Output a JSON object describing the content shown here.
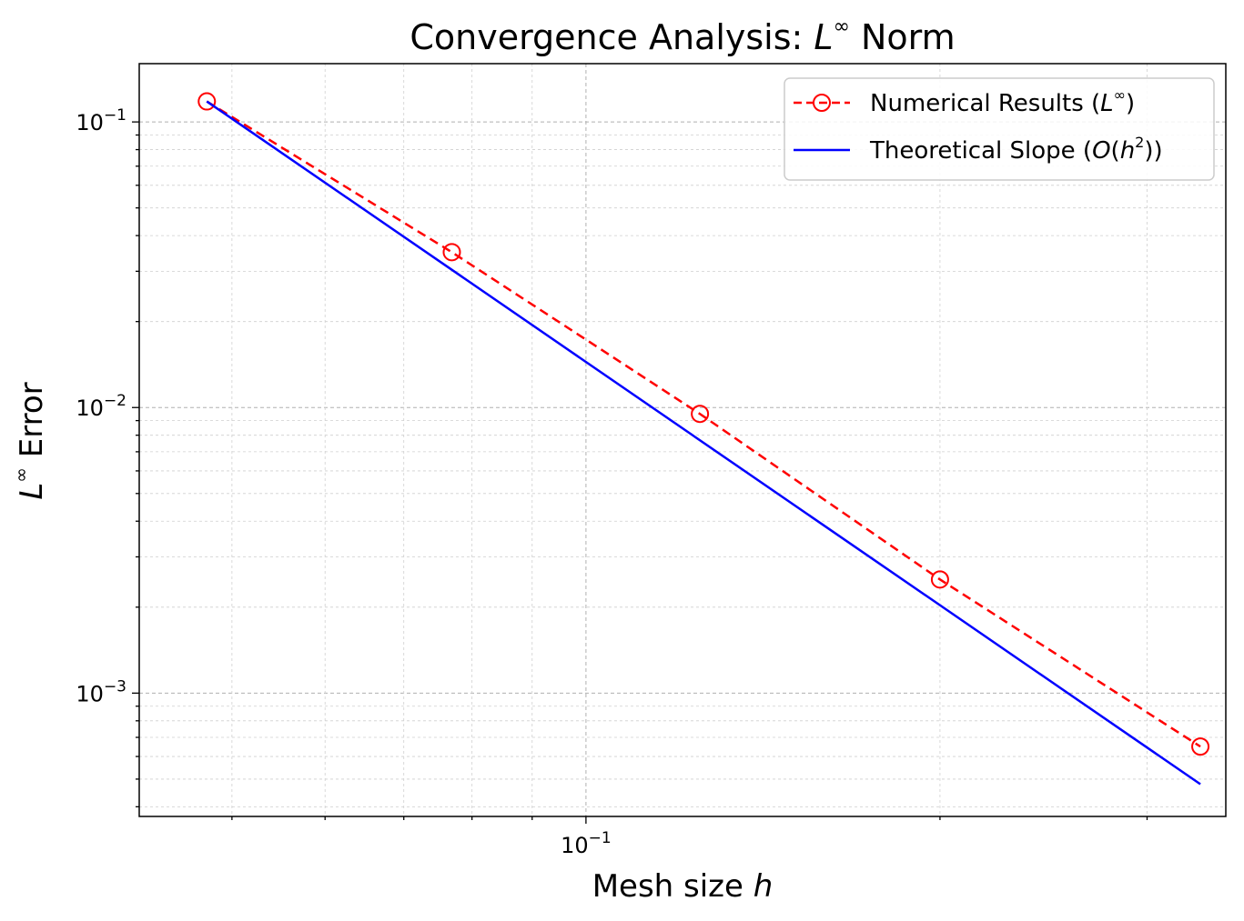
{
  "chart_data": {
    "type": "line",
    "title": "Convergence Analysis: L^∞ Norm",
    "xlabel": "Mesh size h",
    "ylabel": "L^∞ Error",
    "xscale": "log",
    "yscale": "log",
    "xlim": [
      0.0417,
      0.35
    ],
    "ylim": [
      0.00037,
      0.16
    ],
    "x_tick_labels": [
      "10^-1"
    ],
    "y_tick_labels": [
      "10^-1",
      "10^-2",
      "10^-3"
    ],
    "grid": true,
    "legend_position": "top-right",
    "series": [
      {
        "name": "Numerical Results (L^∞)",
        "style": "dashed-circle-markers",
        "color": "#ff0000",
        "x": [
          0.0476,
          0.0769,
          0.125,
          0.2,
          0.333
        ],
        "y": [
          0.118,
          0.035,
          0.0095,
          0.0025,
          0.00065
        ]
      },
      {
        "name": "Theoretical Slope (O(h^2))",
        "style": "solid",
        "color": "#0000ff",
        "x": [
          0.0476,
          0.333
        ],
        "y": [
          0.118,
          0.00048
        ]
      }
    ]
  }
}
